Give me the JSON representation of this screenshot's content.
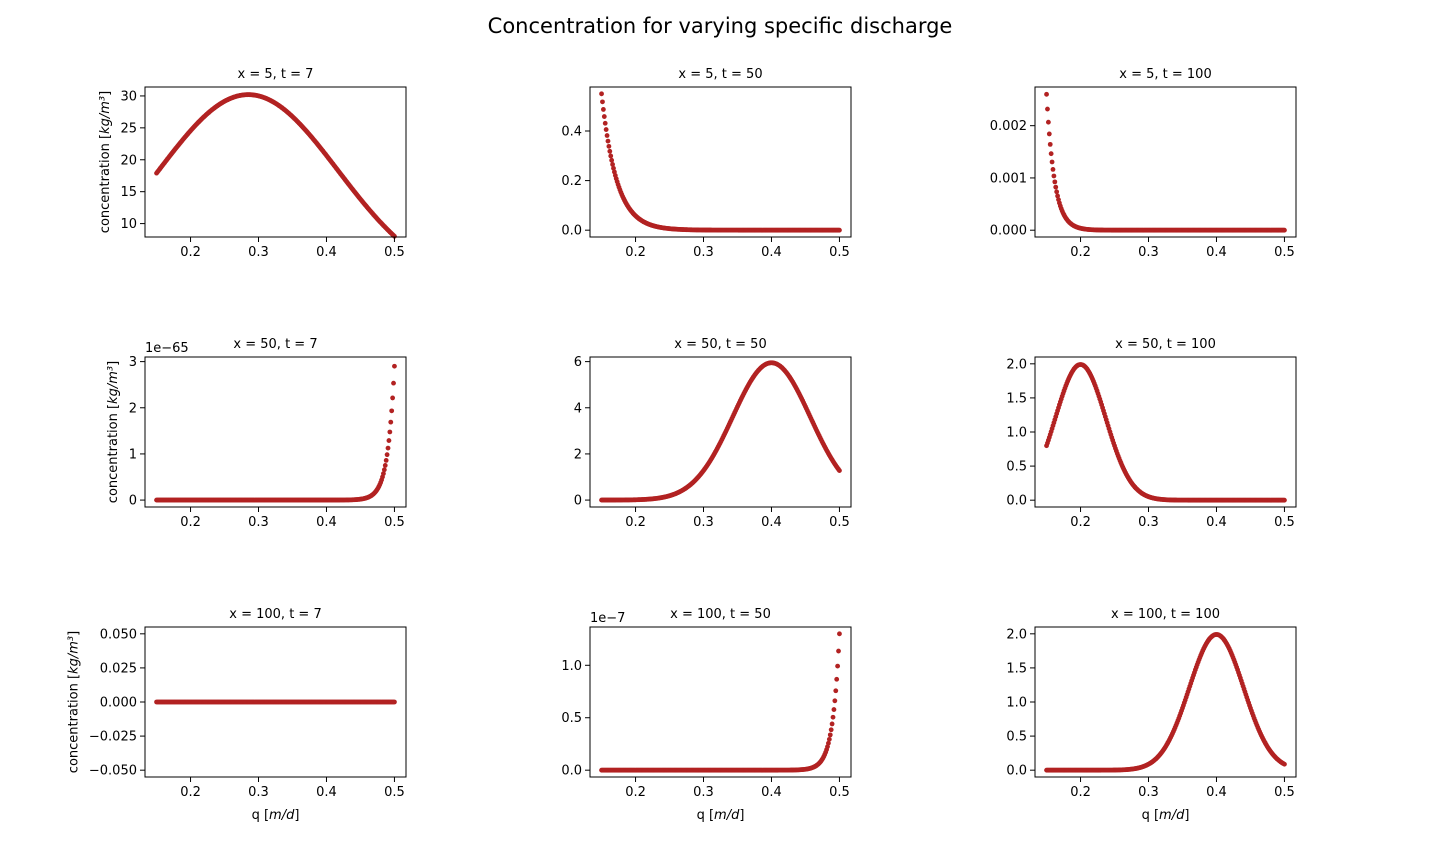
{
  "figure": {
    "suptitle": "Concentration for varying specific discharge",
    "point_color": "#b22222"
  },
  "chart_data": [
    {
      "type": "scatter",
      "title": "x = 5, t = 7",
      "ylabel": "concentration [kg/m³]",
      "xlabel": "",
      "xlim": [
        0.133,
        0.517
      ],
      "ylim": [
        7.9,
        31.4
      ],
      "xticks": [
        0.2,
        0.3,
        0.4,
        0.5
      ],
      "xtick_labels": [
        "0.2",
        "0.3",
        "0.4",
        "0.5"
      ],
      "yticks": [
        10,
        15,
        20,
        25,
        30
      ],
      "ytick_labels": [
        "10",
        "15",
        "20",
        "25",
        "30"
      ],
      "offset_text": "",
      "series": [
        {
          "curve": "gauss",
          "amp": 30.2,
          "center": 0.285,
          "sigma": 0.132,
          "x_range": [
            0.15,
            0.5
          ]
        }
      ]
    },
    {
      "type": "scatter",
      "title": "x = 5, t = 50",
      "ylabel": "",
      "xlabel": "",
      "xlim": [
        0.133,
        0.517
      ],
      "ylim": [
        -0.0275,
        0.5775
      ],
      "xticks": [
        0.2,
        0.3,
        0.4,
        0.5
      ],
      "xtick_labels": [
        "0.2",
        "0.3",
        "0.4",
        "0.5"
      ],
      "yticks": [
        0,
        0.2,
        0.4
      ],
      "ytick_labels": [
        "0.0",
        "0.2",
        "0.4"
      ],
      "offset_text": "",
      "series": [
        {
          "curve": "decay",
          "amp": 0.55,
          "start": 0.15,
          "rate": 45,
          "x_range": [
            0.15,
            0.5
          ]
        }
      ]
    },
    {
      "type": "scatter",
      "title": "x = 5, t = 100",
      "ylabel": "",
      "xlabel": "",
      "xlim": [
        0.133,
        0.517
      ],
      "ylim": [
        -0.00013,
        0.00274
      ],
      "xticks": [
        0.2,
        0.3,
        0.4,
        0.5
      ],
      "xtick_labels": [
        "0.2",
        "0.3",
        "0.4",
        "0.5"
      ],
      "yticks": [
        0,
        0.001,
        0.002
      ],
      "ytick_labels": [
        "0.000",
        "0.001",
        "0.002"
      ],
      "offset_text": "",
      "series": [
        {
          "curve": "decay",
          "amp": 0.0026,
          "start": 0.15,
          "rate": 85,
          "x_range": [
            0.15,
            0.5
          ]
        }
      ]
    },
    {
      "type": "scatter",
      "title": "x = 50, t = 7",
      "ylabel": "concentration [kg/m³]",
      "xlabel": "",
      "xlim": [
        0.133,
        0.517
      ],
      "ylim": [
        -0.15,
        3.1
      ],
      "xticks": [
        0.2,
        0.3,
        0.4,
        0.5
      ],
      "xtick_labels": [
        "0.2",
        "0.3",
        "0.4",
        "0.5"
      ],
      "yticks": [
        0,
        1,
        2,
        3
      ],
      "ytick_labels": [
        "0",
        "1",
        "2",
        "3"
      ],
      "offset_text": "1e−65",
      "series": [
        {
          "curve": "growth",
          "amp": 2.9,
          "end": 0.5,
          "rate": 100,
          "x_range": [
            0.15,
            0.5
          ]
        }
      ]
    },
    {
      "type": "scatter",
      "title": "x = 50, t = 50",
      "ylabel": "",
      "xlabel": "",
      "xlim": [
        0.133,
        0.517
      ],
      "ylim": [
        -0.3,
        6.2
      ],
      "xticks": [
        0.2,
        0.3,
        0.4,
        0.5
      ],
      "xtick_labels": [
        "0.2",
        "0.3",
        "0.4",
        "0.5"
      ],
      "yticks": [
        0,
        2,
        4,
        6
      ],
      "ytick_labels": [
        "0",
        "2",
        "4",
        "6"
      ],
      "offset_text": "",
      "series": [
        {
          "curve": "gauss",
          "amp": 5.95,
          "center": 0.4,
          "sigma": 0.057,
          "x_range": [
            0.15,
            0.5
          ]
        }
      ]
    },
    {
      "type": "scatter",
      "title": "x = 50, t = 100",
      "ylabel": "",
      "xlabel": "",
      "xlim": [
        0.133,
        0.517
      ],
      "ylim": [
        -0.1,
        2.1
      ],
      "xticks": [
        0.2,
        0.3,
        0.4,
        0.5
      ],
      "xtick_labels": [
        "0.2",
        "0.3",
        "0.4",
        "0.5"
      ],
      "yticks": [
        0,
        0.5,
        1,
        1.5,
        2
      ],
      "ytick_labels": [
        "0.0",
        "0.5",
        "1.0",
        "1.5",
        "2.0"
      ],
      "offset_text": "",
      "series": [
        {
          "curve": "gauss",
          "amp": 1.99,
          "center": 0.2,
          "sigma": 0.037,
          "x_range": [
            0.15,
            0.5
          ]
        }
      ]
    },
    {
      "type": "scatter",
      "title": "x = 100, t = 7",
      "ylabel": "concentration [kg/m³]",
      "xlabel": "q [m/d]",
      "xlim": [
        0.133,
        0.517
      ],
      "ylim": [
        -0.055,
        0.055
      ],
      "xticks": [
        0.2,
        0.3,
        0.4,
        0.5
      ],
      "xtick_labels": [
        "0.2",
        "0.3",
        "0.4",
        "0.5"
      ],
      "yticks": [
        -0.05,
        -0.025,
        0,
        0.025,
        0.05
      ],
      "ytick_labels": [
        "−0.050",
        "−0.025",
        "0.000",
        "0.025",
        "0.050"
      ],
      "offset_text": "",
      "series": [
        {
          "curve": "zero",
          "x_range": [
            0.15,
            0.5
          ]
        }
      ]
    },
    {
      "type": "scatter",
      "title": "x = 100, t = 50",
      "ylabel": "",
      "xlabel": "q [m/d]",
      "xlim": [
        0.133,
        0.517
      ],
      "ylim": [
        -0.065,
        1.365
      ],
      "xticks": [
        0.2,
        0.3,
        0.4,
        0.5
      ],
      "xtick_labels": [
        "0.2",
        "0.3",
        "0.4",
        "0.5"
      ],
      "yticks": [
        0,
        0.5,
        1
      ],
      "ytick_labels": [
        "0.0",
        "0.5",
        "1.0"
      ],
      "offset_text": "1e−7",
      "series": [
        {
          "curve": "growth",
          "amp": 1.3,
          "end": 0.5,
          "rate": 100,
          "x_range": [
            0.15,
            0.5
          ]
        }
      ]
    },
    {
      "type": "scatter",
      "title": "x = 100, t = 100",
      "ylabel": "",
      "xlabel": "q [m/d]",
      "xlim": [
        0.133,
        0.517
      ],
      "ylim": [
        -0.1,
        2.1
      ],
      "xticks": [
        0.2,
        0.3,
        0.4,
        0.5
      ],
      "xtick_labels": [
        "0.2",
        "0.3",
        "0.4",
        "0.5"
      ],
      "yticks": [
        0,
        0.5,
        1,
        1.5,
        2
      ],
      "ytick_labels": [
        "0.0",
        "0.5",
        "1.0",
        "1.5",
        "2.0"
      ],
      "offset_text": "",
      "series": [
        {
          "curve": "gauss",
          "amp": 1.99,
          "center": 0.4,
          "sigma": 0.04,
          "x_range": [
            0.15,
            0.5
          ]
        }
      ]
    }
  ]
}
